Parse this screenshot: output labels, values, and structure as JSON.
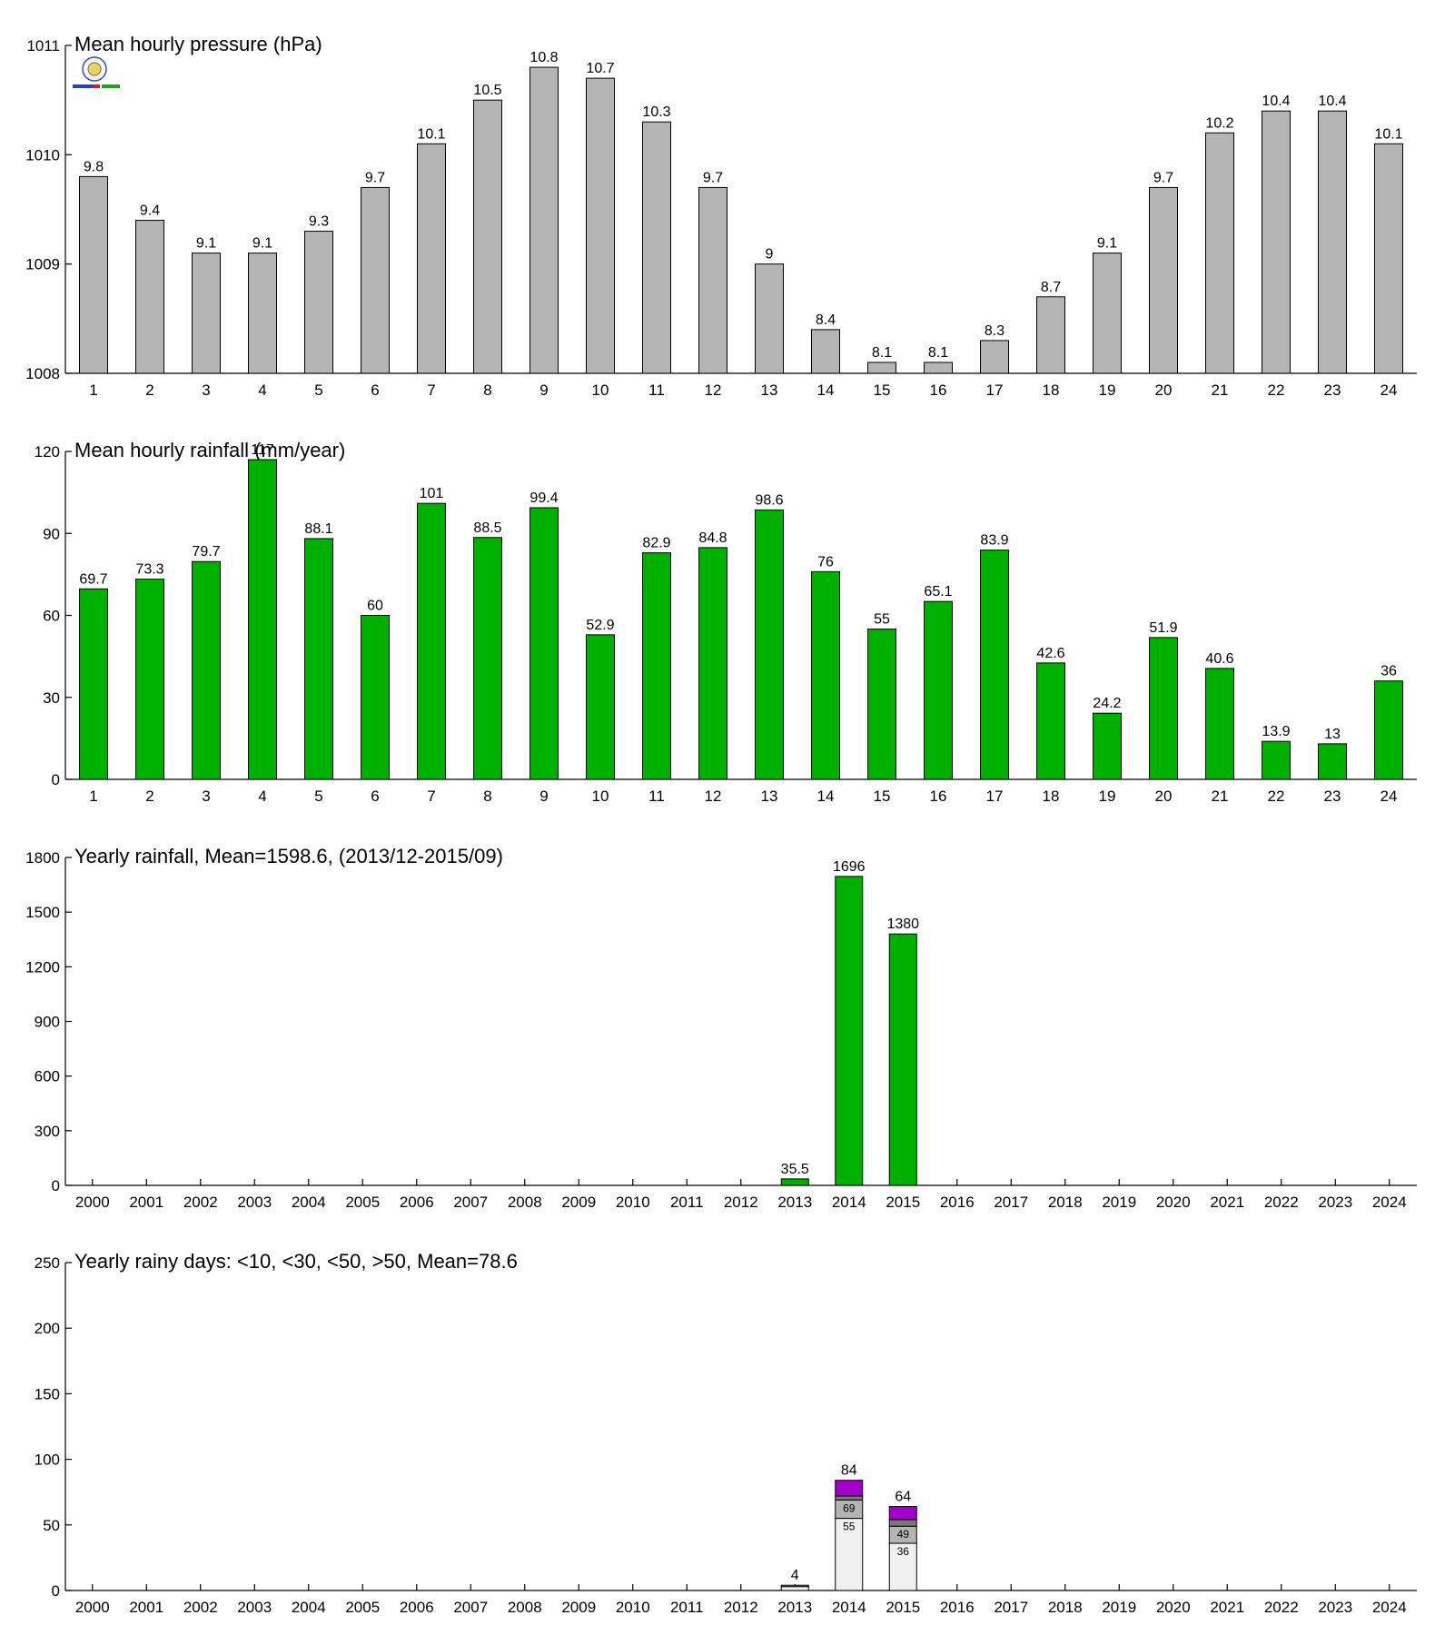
{
  "chart_data": [
    {
      "type": "bar",
      "title": "Mean hourly pressure (hPa)",
      "categories": [
        "1",
        "2",
        "3",
        "4",
        "5",
        "6",
        "7",
        "8",
        "9",
        "10",
        "11",
        "12",
        "13",
        "14",
        "15",
        "16",
        "17",
        "18",
        "19",
        "20",
        "21",
        "22",
        "23",
        "24"
      ],
      "values": [
        1009.8,
        1009.4,
        1009.1,
        1009.1,
        1009.3,
        1009.7,
        1010.1,
        1010.5,
        1010.8,
        1010.7,
        1010.3,
        1009.7,
        1009.0,
        1008.4,
        1008.1,
        1008.1,
        1008.3,
        1008.7,
        1009.1,
        1009.7,
        1010.2,
        1010.4,
        1010.4,
        1010.1
      ],
      "data_labels": [
        "9.8",
        "9.4",
        "9.1",
        "9.1",
        "9.3",
        "9.7",
        "10.1",
        "10.5",
        "10.8",
        "10.7",
        "10.3",
        "9.7",
        "9",
        "8.4",
        "8.1",
        "8.1",
        "8.3",
        "8.7",
        "9.1",
        "9.7",
        "10.2",
        "10.4",
        "10.4",
        "10.1"
      ],
      "ylim": [
        1008,
        1011
      ],
      "yticks": [
        "1008",
        "1009",
        "1010",
        "1011"
      ],
      "bar_color": "#b4b4b4",
      "grid": false,
      "logo": "station-seal-logo"
    },
    {
      "type": "bar",
      "title": "Mean hourly rainfall (mm/year)",
      "categories": [
        "1",
        "2",
        "3",
        "4",
        "5",
        "6",
        "7",
        "8",
        "9",
        "10",
        "11",
        "12",
        "13",
        "14",
        "15",
        "16",
        "17",
        "18",
        "19",
        "20",
        "21",
        "22",
        "23",
        "24"
      ],
      "values": [
        69.7,
        73.3,
        79.7,
        117,
        88.1,
        60,
        101,
        88.5,
        99.4,
        52.9,
        82.9,
        84.8,
        98.6,
        76,
        55,
        65.1,
        83.9,
        42.6,
        24.2,
        51.9,
        40.6,
        13.9,
        13,
        36
      ],
      "data_labels": [
        "69.7",
        "73.3",
        "79.7",
        "117",
        "88.1",
        "60",
        "101",
        "88.5",
        "99.4",
        "52.9",
        "82.9",
        "84.8",
        "98.6",
        "76",
        "55",
        "65.1",
        "83.9",
        "42.6",
        "24.2",
        "51.9",
        "40.6",
        "13.9",
        "13",
        "36"
      ],
      "ylim": [
        0,
        120
      ],
      "yticks": [
        "0",
        "30",
        "60",
        "90",
        "120"
      ],
      "bar_color": "#00b000",
      "grid": false
    },
    {
      "type": "bar",
      "title": "Yearly rainfall, Mean=1598.6, (2013/12-2015/09)",
      "categories": [
        "2000",
        "2001",
        "2002",
        "2003",
        "2004",
        "2005",
        "2006",
        "2007",
        "2008",
        "2009",
        "2010",
        "2011",
        "2012",
        "2013",
        "2014",
        "2015",
        "2016",
        "2017",
        "2018",
        "2019",
        "2020",
        "2021",
        "2022",
        "2023",
        "2024"
      ],
      "values": [
        null,
        null,
        null,
        null,
        null,
        null,
        null,
        null,
        null,
        null,
        null,
        null,
        null,
        35.5,
        1696,
        1380,
        null,
        null,
        null,
        null,
        null,
        null,
        null,
        null,
        null
      ],
      "data_labels": [
        "",
        "",
        "",
        "",
        "",
        "",
        "",
        "",
        "",
        "",
        "",
        "",
        "",
        "35.5",
        "1696",
        "1380",
        "",
        "",
        "",
        "",
        "",
        "",
        "",
        "",
        ""
      ],
      "ylim": [
        0,
        1800
      ],
      "yticks": [
        "0",
        "300",
        "600",
        "900",
        "1200",
        "1500",
        "1800"
      ],
      "bar_color": "#00b000",
      "grid": false
    },
    {
      "type": "bar",
      "stacked": true,
      "title": "Yearly rainy days: <10, <30, <50, >50, Mean=78.6",
      "categories": [
        "2000",
        "2001",
        "2002",
        "2003",
        "2004",
        "2005",
        "2006",
        "2007",
        "2008",
        "2009",
        "2010",
        "2011",
        "2012",
        "2013",
        "2014",
        "2015",
        "2016",
        "2017",
        "2018",
        "2019",
        "2020",
        "2021",
        "2022",
        "2023",
        "2024"
      ],
      "series": [
        {
          "values": [
            null,
            null,
            null,
            null,
            null,
            null,
            null,
            null,
            null,
            null,
            null,
            null,
            null,
            3,
            55,
            36,
            null,
            null,
            null,
            null,
            null,
            null,
            null,
            null,
            null
          ],
          "color": "#f0f0f0"
        },
        {
          "values": [
            null,
            null,
            null,
            null,
            null,
            null,
            null,
            null,
            null,
            null,
            null,
            null,
            null,
            1,
            14,
            13,
            null,
            null,
            null,
            null,
            null,
            null,
            null,
            null,
            null
          ],
          "color": "#b4b4b4"
        },
        {
          "values": [
            null,
            null,
            null,
            null,
            null,
            null,
            null,
            null,
            null,
            null,
            null,
            null,
            null,
            0,
            3,
            5,
            null,
            null,
            null,
            null,
            null,
            null,
            null,
            null,
            null
          ],
          "color": "#787878"
        },
        {
          "values": [
            null,
            null,
            null,
            null,
            null,
            null,
            null,
            null,
            null,
            null,
            null,
            null,
            null,
            0,
            12,
            10,
            null,
            null,
            null,
            null,
            null,
            null,
            null,
            null,
            null
          ],
          "color": "#a000c8"
        }
      ],
      "segment_labels": [
        {
          "year": "2014",
          "text": "55"
        },
        {
          "year": "2014",
          "text": "69"
        },
        {
          "year": "2015",
          "text": "36"
        },
        {
          "year": "2015",
          "text": "49"
        }
      ],
      "totals": [
        "",
        "",
        "",
        "",
        "",
        "",
        "",
        "",
        "",
        "",
        "",
        "",
        "",
        "4",
        "84",
        "64",
        "",
        "",
        "",
        "",
        "",
        "",
        "",
        "",
        ""
      ],
      "ylim": [
        0,
        250
      ],
      "yticks": [
        "0",
        "50",
        "100",
        "150",
        "200",
        "250"
      ],
      "grid": false
    }
  ]
}
